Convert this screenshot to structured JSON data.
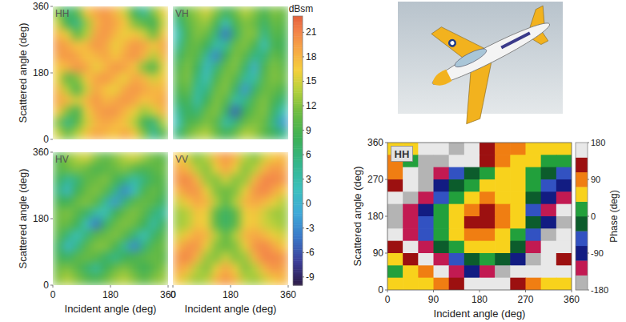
{
  "chart_data": [
    {
      "type": "heatmap",
      "title": "HH",
      "ylabel": "Scattered angle (deg)",
      "x": [
        15,
        45,
        75,
        105,
        135,
        165,
        195,
        225,
        255,
        285,
        315,
        345
      ],
      "y": [
        345,
        315,
        285,
        255,
        225,
        195,
        165,
        135,
        105,
        75,
        45,
        15
      ],
      "xlim": [
        0,
        360
      ],
      "ylim": [
        0,
        360
      ],
      "yticks": [
        0,
        180,
        360
      ],
      "tick_labels": "y",
      "values": [
        [
          12,
          6,
          10,
          17,
          19,
          20,
          18,
          15,
          8,
          4,
          12,
          16
        ],
        [
          15,
          8,
          5,
          13,
          18,
          20,
          19,
          17,
          12,
          10,
          8,
          15
        ],
        [
          18,
          16,
          10,
          14,
          19,
          20,
          18,
          16,
          17,
          15,
          11,
          17
        ],
        [
          20,
          19,
          17,
          18,
          20,
          19,
          16,
          18,
          20,
          19,
          17,
          19
        ],
        [
          19,
          20,
          19,
          17,
          18,
          19,
          17,
          19,
          20,
          18,
          14,
          18
        ],
        [
          17,
          18,
          20,
          19,
          16,
          18,
          20,
          19,
          17,
          12,
          9,
          16
        ],
        [
          16,
          10,
          12,
          17,
          19,
          20,
          18,
          16,
          19,
          18,
          15,
          17
        ],
        [
          18,
          14,
          9,
          15,
          19,
          17,
          16,
          19,
          20,
          19,
          18,
          18
        ],
        [
          19,
          18,
          15,
          18,
          20,
          18,
          19,
          20,
          19,
          17,
          18,
          19
        ],
        [
          17,
          12,
          8,
          16,
          19,
          20,
          20,
          18,
          16,
          13,
          15,
          18
        ],
        [
          12,
          5,
          10,
          15,
          18,
          19,
          18,
          17,
          14,
          8,
          6,
          14
        ],
        [
          15,
          11,
          14,
          17,
          19,
          18,
          17,
          19,
          17,
          12,
          4,
          10
        ]
      ],
      "colorbar": {
        "label": "dBsm",
        "lim": [
          -10,
          23
        ],
        "ticks": [
          21,
          18,
          15,
          12,
          9,
          6,
          3,
          0,
          -3,
          -6,
          -9
        ]
      }
    },
    {
      "type": "heatmap",
      "title": "VH",
      "x": [
        15,
        45,
        75,
        105,
        135,
        165,
        195,
        225,
        255,
        285,
        315,
        345
      ],
      "y": [
        345,
        315,
        285,
        255,
        225,
        195,
        165,
        135,
        105,
        75,
        45,
        15
      ],
      "xlim": [
        0,
        360
      ],
      "ylim": [
        0,
        360
      ],
      "tick_labels": false,
      "values": [
        [
          8,
          11,
          13,
          15,
          12,
          8,
          11,
          14,
          12,
          9,
          12,
          11
        ],
        [
          5,
          10,
          12,
          13,
          9,
          2,
          9,
          12,
          11,
          7,
          11,
          10
        ],
        [
          2,
          9,
          12,
          11,
          6,
          -4,
          7,
          12,
          12,
          5,
          10,
          9
        ],
        [
          4,
          10,
          11,
          8,
          3,
          4,
          11,
          12,
          9,
          2,
          9,
          8
        ],
        [
          7,
          11,
          10,
          4,
          -3,
          8,
          12,
          10,
          5,
          6,
          11,
          9
        ],
        [
          9,
          12,
          8,
          1,
          6,
          11,
          12,
          7,
          0,
          9,
          12,
          10
        ],
        [
          10,
          12,
          6,
          2,
          9,
          12,
          10,
          4,
          3,
          10,
          12,
          11
        ],
        [
          9,
          11,
          4,
          5,
          11,
          12,
          7,
          -2,
          7,
          11,
          11,
          9
        ],
        [
          7,
          9,
          3,
          8,
          12,
          10,
          3,
          5,
          10,
          12,
          9,
          6
        ],
        [
          4,
          8,
          6,
          11,
          12,
          7,
          -5,
          8,
          11,
          12,
          7,
          2
        ],
        [
          2,
          9,
          10,
          12,
          10,
          3,
          6,
          11,
          12,
          11,
          5,
          -2
        ],
        [
          6,
          11,
          13,
          14,
          11,
          8,
          11,
          14,
          13,
          10,
          8,
          5
        ]
      ]
    },
    {
      "type": "heatmap",
      "title": "HV",
      "xlabel": "Incident angle (deg)",
      "ylabel": "Scattered angle (deg)",
      "x": [
        15,
        45,
        75,
        105,
        135,
        165,
        195,
        225,
        255,
        285,
        315,
        345
      ],
      "y": [
        345,
        315,
        285,
        255,
        225,
        195,
        165,
        135,
        105,
        75,
        45,
        15
      ],
      "xlim": [
        0,
        360
      ],
      "ylim": [
        0,
        360
      ],
      "xticks": [
        0,
        180,
        360
      ],
      "yticks": [
        0,
        180,
        360
      ],
      "tick_labels": true,
      "values": [
        [
          9,
          12,
          14,
          15,
          12,
          10,
          12,
          14,
          15,
          13,
          11,
          10
        ],
        [
          10,
          11,
          12,
          11,
          9,
          10,
          11,
          12,
          10,
          9,
          10,
          11
        ],
        [
          8,
          4,
          6,
          10,
          11,
          12,
          9,
          6,
          3,
          6,
          9,
          10
        ],
        [
          6,
          1,
          8,
          11,
          12,
          10,
          5,
          -3,
          2,
          9,
          11,
          9
        ],
        [
          9,
          8,
          11,
          12,
          10,
          4,
          -2,
          6,
          10,
          11,
          10,
          7
        ],
        [
          11,
          12,
          10,
          7,
          3,
          2,
          8,
          11,
          12,
          10,
          6,
          4
        ],
        [
          11,
          11,
          8,
          2,
          -4,
          7,
          11,
          12,
          11,
          8,
          3,
          8
        ],
        [
          10,
          6,
          2,
          6,
          10,
          11,
          12,
          10,
          6,
          2,
          7,
          10
        ],
        [
          8,
          1,
          5,
          10,
          12,
          12,
          9,
          4,
          -3,
          6,
          10,
          11
        ],
        [
          9,
          7,
          10,
          11,
          10,
          7,
          5,
          8,
          9,
          10,
          11,
          10
        ],
        [
          11,
          12,
          10,
          7,
          4,
          8,
          11,
          12,
          10,
          8,
          10,
          12
        ],
        [
          12,
          14,
          12,
          10,
          9,
          11,
          13,
          14,
          12,
          10,
          12,
          13
        ]
      ]
    },
    {
      "type": "heatmap",
      "title": "VV",
      "xlabel": "Incident angle (deg)",
      "x": [
        15,
        45,
        75,
        105,
        135,
        165,
        195,
        225,
        255,
        285,
        315,
        345
      ],
      "y": [
        345,
        315,
        285,
        255,
        225,
        195,
        165,
        135,
        105,
        75,
        45,
        15
      ],
      "xlim": [
        0,
        360
      ],
      "ylim": [
        0,
        360
      ],
      "xticks": [
        0,
        180,
        360
      ],
      "tick_labels": "x",
      "values": [
        [
          17,
          15,
          12,
          14,
          18,
          20,
          18,
          14,
          12,
          15,
          17,
          18
        ],
        [
          19,
          18,
          14,
          12,
          16,
          19,
          16,
          12,
          14,
          18,
          20,
          19
        ],
        [
          20,
          21,
          18,
          13,
          12,
          15,
          12,
          13,
          18,
          21,
          21,
          20
        ],
        [
          18,
          20,
          20,
          16,
          12,
          11,
          12,
          16,
          20,
          21,
          19,
          17
        ],
        [
          15,
          17,
          19,
          18,
          14,
          10,
          14,
          18,
          19,
          18,
          16,
          14
        ],
        [
          13,
          14,
          17,
          16,
          10,
          7,
          10,
          16,
          17,
          15,
          13,
          13
        ],
        [
          13,
          14,
          17,
          16,
          10,
          7,
          10,
          16,
          17,
          15,
          14,
          13
        ],
        [
          15,
          17,
          19,
          18,
          14,
          10,
          14,
          18,
          19,
          18,
          16,
          15
        ],
        [
          18,
          20,
          20,
          16,
          12,
          11,
          12,
          16,
          20,
          21,
          19,
          17
        ],
        [
          20,
          21,
          18,
          13,
          12,
          15,
          12,
          13,
          18,
          21,
          21,
          20
        ],
        [
          19,
          18,
          14,
          12,
          16,
          19,
          16,
          12,
          14,
          18,
          20,
          19
        ],
        [
          17,
          15,
          13,
          14,
          18,
          20,
          18,
          14,
          13,
          15,
          17,
          18
        ]
      ]
    },
    {
      "type": "heatmap",
      "title": "HH",
      "xlabel": "Incident angle (deg)",
      "ylabel": "Scattered angle (deg)",
      "x": [
        15,
        45,
        75,
        105,
        135,
        165,
        195,
        225,
        255,
        285,
        315,
        345
      ],
      "y": [
        345,
        315,
        285,
        255,
        225,
        195,
        165,
        135,
        105,
        75,
        45,
        15
      ],
      "xlim": [
        0,
        360
      ],
      "ylim": [
        0,
        360
      ],
      "xticks": [
        0,
        90,
        180,
        270,
        360
      ],
      "yticks": [
        0,
        90,
        180,
        270,
        360
      ],
      "tick_labels": true,
      "values": [
        [
          60,
          50,
          160,
          170,
          -170,
          150,
          130,
          100,
          80,
          70,
          60,
          40
        ],
        [
          80,
          20,
          -150,
          -170,
          170,
          160,
          120,
          90,
          70,
          60,
          30,
          10
        ],
        [
          100,
          160,
          -160,
          -120,
          -60,
          -10,
          20,
          50,
          40,
          10,
          -20,
          -40
        ],
        [
          130,
          170,
          -170,
          -90,
          -30,
          20,
          50,
          60,
          50,
          0,
          -60,
          -100
        ],
        [
          170,
          -170,
          -130,
          -40,
          30,
          70,
          80,
          70,
          40,
          -20,
          -90,
          -140
        ],
        [
          -170,
          -140,
          -80,
          10,
          60,
          100,
          110,
          90,
          50,
          -40,
          -120,
          170
        ],
        [
          -150,
          -120,
          -50,
          30,
          70,
          110,
          130,
          100,
          60,
          -10,
          -80,
          -160
        ],
        [
          160,
          -130,
          -60,
          20,
          60,
          80,
          90,
          70,
          30,
          -50,
          -160,
          170
        ],
        [
          120,
          170,
          -110,
          -30,
          20,
          40,
          50,
          40,
          -20,
          -110,
          170,
          150
        ],
        [
          60,
          110,
          170,
          -110,
          -40,
          -10,
          0,
          -30,
          -90,
          -170,
          160,
          140
        ],
        [
          30,
          60,
          100,
          160,
          -140,
          -100,
          -120,
          -160,
          170,
          150,
          160,
          170
        ],
        [
          40,
          50,
          70,
          90,
          130,
          170,
          170,
          150,
          120,
          90,
          60,
          50
        ]
      ],
      "colorbar": {
        "label": "Phase (deg)",
        "lim": [
          -180,
          180
        ],
        "ticks": [
          180,
          90,
          0,
          -90,
          -180
        ]
      }
    }
  ]
}
